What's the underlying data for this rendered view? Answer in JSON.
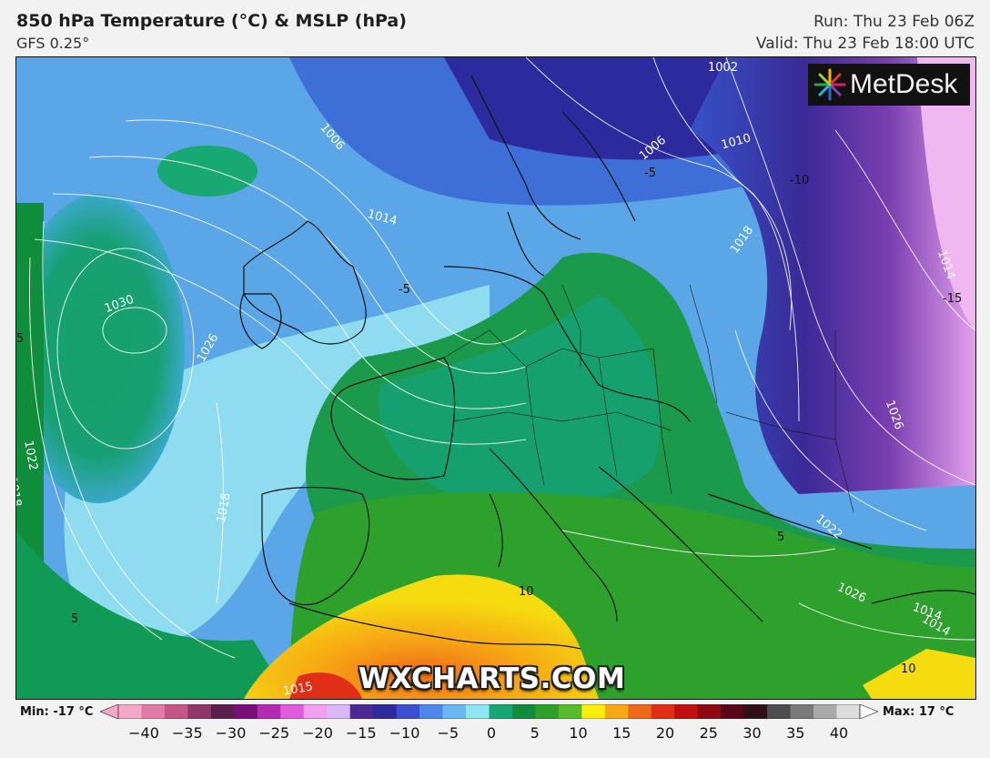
{
  "header": {
    "title": "850 hPa Temperature (°C) & MSLP (hPa)",
    "model": "GFS 0.25°",
    "run": "Run: Thu 23 Feb 06Z",
    "valid": "Valid: Thu 23 Feb 18:00 UTC"
  },
  "logo": {
    "text": "MetDesk"
  },
  "watermark": "WXCHARTS.COM",
  "isobar_labels": [
    "1002",
    "1006",
    "1006",
    "1010",
    "1014",
    "1018",
    "1022",
    "1026",
    "1030",
    "1014",
    "1026",
    "1022",
    "1018",
    "1018",
    "1026",
    "1014",
    "1015",
    "1022",
    "1014"
  ],
  "temperature_labels": [
    "-15",
    "-10",
    "-5",
    "-5",
    "5",
    "10",
    "10",
    "5",
    "5"
  ],
  "legend": {
    "min_label": "Min: -17 °C",
    "max_label": "Max: 17 °C",
    "ticks": [
      "−40",
      "−35",
      "−30",
      "−25",
      "−20",
      "−15",
      "−10",
      "−5",
      "0",
      "5",
      "10",
      "15",
      "20",
      "25",
      "30",
      "35",
      "40"
    ],
    "colors": [
      "#f4a8c8",
      "#e27aa6",
      "#c35686",
      "#8f3768",
      "#5a1f4e",
      "#7a0f7a",
      "#b32bb2",
      "#dd5ddc",
      "#f0a0ef",
      "#d8b8f6",
      "#4a2a92",
      "#2c2a9c",
      "#3b4fd1",
      "#4f86ea",
      "#6ab8f2",
      "#8fe6f3",
      "#1aa574",
      "#0f8d3a",
      "#2ea12c",
      "#57bb2b",
      "#ffee0a",
      "#f7a915",
      "#ee6a19",
      "#e12f17",
      "#c10f10",
      "#8c0812",
      "#5a0616",
      "#2f1018",
      "#4d4d4d",
      "#7a7a7a",
      "#aaaaaa",
      "#dddddd"
    ]
  },
  "colors": {
    "background": "#f2f2f2",
    "sea_cold": "#4aa0e0",
    "land_mild": "#1f9a5b"
  }
}
